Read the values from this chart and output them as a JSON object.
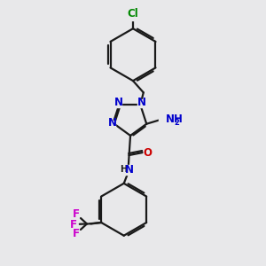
{
  "bg": "#e8e8ea",
  "bc": "#1a1a1a",
  "Nc": "#0000cc",
  "Oc": "#cc0000",
  "Fc": "#cc00cc",
  "Clc": "#008800",
  "NHc": "#0000cc",
  "lw": 1.6,
  "fs": 8.5,
  "figsize": [
    3.0,
    3.0
  ],
  "dpi": 100,
  "xlim": [
    -1.5,
    5.5
  ],
  "ylim": [
    -5.5,
    4.5
  ]
}
